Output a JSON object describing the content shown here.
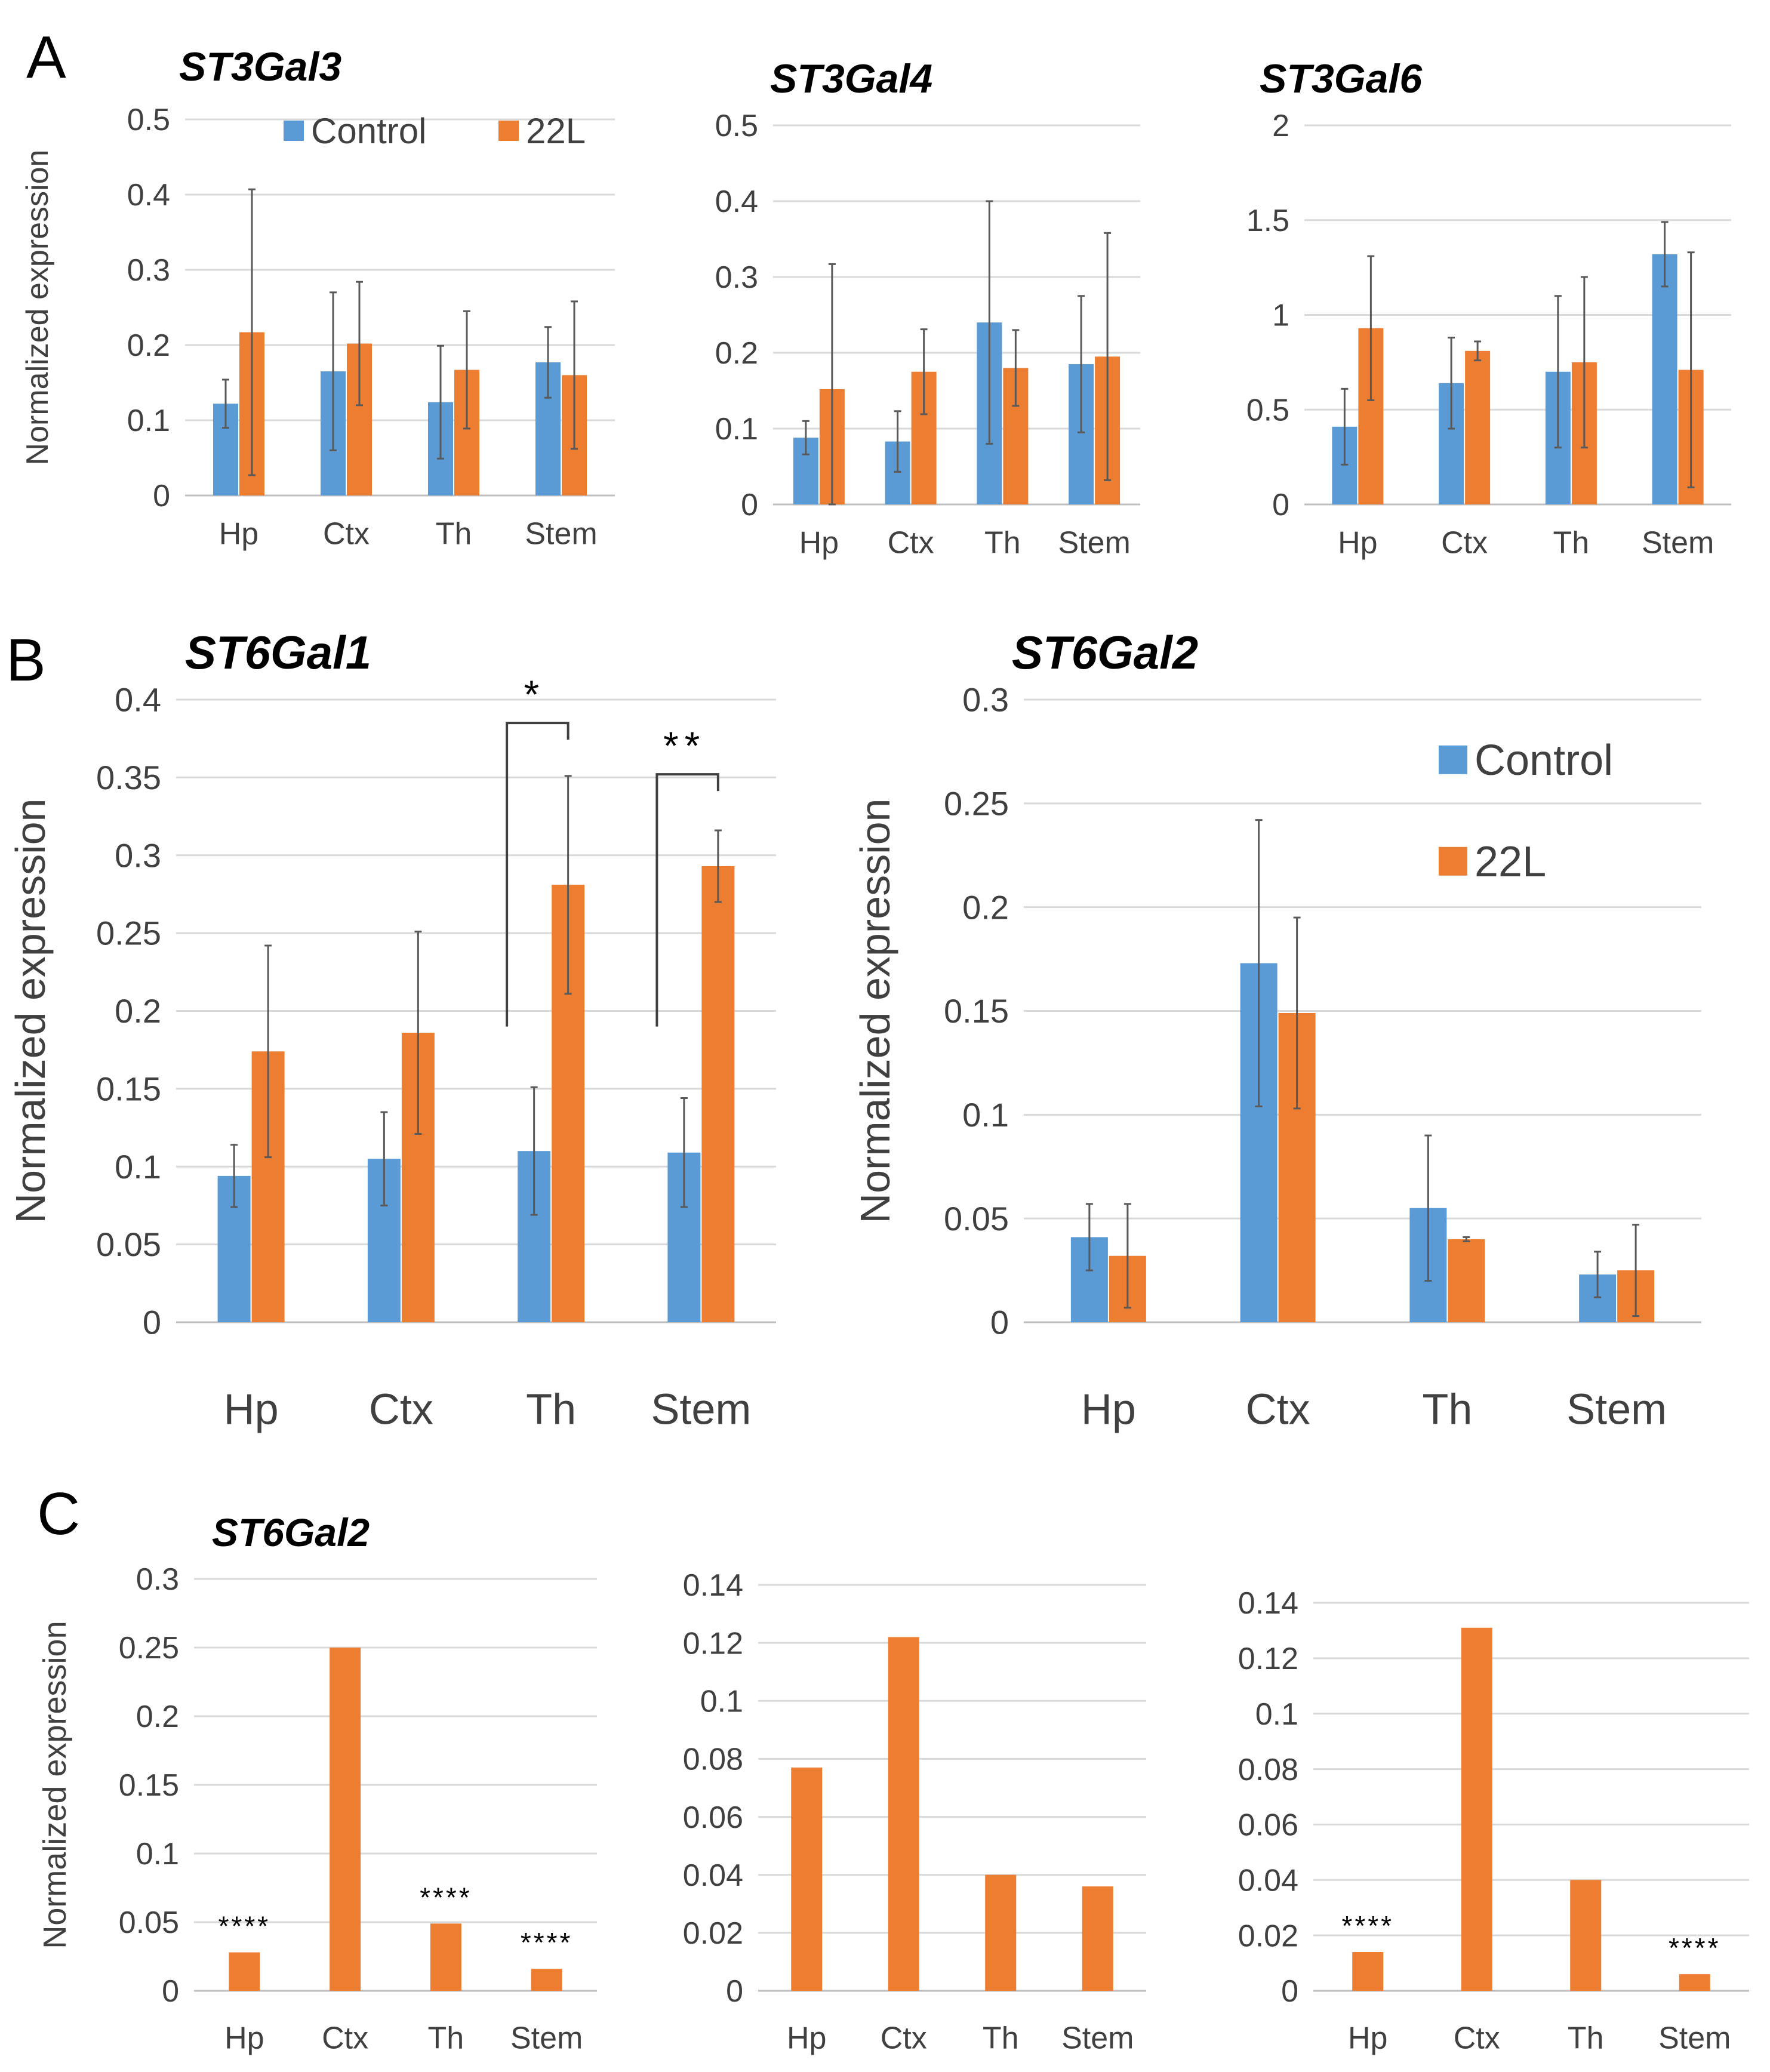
{
  "figure": {
    "panel_labels": [
      "A",
      "B",
      "C"
    ],
    "colors": {
      "control": "#5B9BD5",
      "treated": "#ED7D31",
      "grid": "#D9D9D9",
      "axis": "#BFBFBF",
      "text": "#404040",
      "errorbar": "#595959"
    }
  },
  "chart_data": [
    {
      "id": "a1",
      "panel": "A",
      "type": "bar",
      "title": "ST3Gal3",
      "categories": [
        "Hp",
        "Ctx",
        "Th",
        "Stem"
      ],
      "ylabel": "Normalized expression",
      "ylim": [
        0,
        0.5
      ],
      "yticks": [
        "0",
        "0.1",
        "0.2",
        "0.3",
        "0.4",
        "0.5"
      ],
      "ytick_values": [
        0,
        0.1,
        0.2,
        0.3,
        0.4,
        0.5
      ],
      "legend": [
        "Control",
        "22L"
      ],
      "legend_position": "top",
      "series": [
        {
          "name": "Control",
          "values": [
            0.122,
            0.165,
            0.124,
            0.177
          ],
          "errors": [
            0.032,
            0.105,
            0.075,
            0.047
          ]
        },
        {
          "name": "22L",
          "values": [
            0.217,
            0.202,
            0.167,
            0.16
          ],
          "errors": [
            0.19,
            0.082,
            0.078,
            0.098
          ]
        }
      ]
    },
    {
      "id": "a2",
      "panel": "A",
      "type": "bar",
      "title": "ST3Gal4",
      "categories": [
        "Hp",
        "Ctx",
        "Th",
        "Stem"
      ],
      "ylim": [
        0,
        0.5
      ],
      "yticks": [
        "0",
        "0.1",
        "0.2",
        "0.3",
        "0.4",
        "0.5"
      ],
      "ytick_values": [
        0,
        0.1,
        0.2,
        0.3,
        0.4,
        0.5
      ],
      "series": [
        {
          "name": "Control",
          "values": [
            0.088,
            0.083,
            0.24,
            0.185
          ],
          "errors": [
            0.022,
            0.04,
            0.16,
            0.09
          ]
        },
        {
          "name": "22L",
          "values": [
            0.152,
            0.175,
            0.18,
            0.195
          ],
          "errors": [
            0.165,
            0.056,
            0.05,
            0.163
          ]
        }
      ]
    },
    {
      "id": "a3",
      "panel": "A",
      "type": "bar",
      "title": "ST3Gal6",
      "categories": [
        "Hp",
        "Ctx",
        "Th",
        "Stem"
      ],
      "ylim": [
        0,
        2
      ],
      "yticks": [
        "0",
        "0.5",
        "1",
        "1.5",
        "2"
      ],
      "ytick_values": [
        0,
        0.5,
        1,
        1.5,
        2
      ],
      "series": [
        {
          "name": "Control",
          "values": [
            0.41,
            0.64,
            0.7,
            1.32
          ],
          "errors": [
            0.2,
            0.24,
            0.4,
            0.17
          ]
        },
        {
          "name": "22L",
          "values": [
            0.93,
            0.81,
            0.75,
            0.71
          ],
          "errors": [
            0.38,
            0.05,
            0.45,
            0.62
          ]
        }
      ]
    },
    {
      "id": "b1",
      "panel": "B",
      "type": "bar",
      "title": "ST6Gal1",
      "categories": [
        "Hp",
        "Ctx",
        "Th",
        "Stem"
      ],
      "ylabel": "Normalized expression",
      "ylim": [
        0,
        0.4
      ],
      "yticks": [
        "0",
        "0.05",
        "0.1",
        "0.15",
        "0.2",
        "0.25",
        "0.3",
        "0.35",
        "0.4"
      ],
      "ytick_values": [
        0,
        0.05,
        0.1,
        0.15,
        0.2,
        0.25,
        0.3,
        0.35,
        0.4
      ],
      "significance": [
        {
          "category": "Th",
          "label": "*",
          "base": 0.19,
          "top": 0.385
        },
        {
          "category": "Stem",
          "label": "**",
          "base": 0.19,
          "top": 0.352
        }
      ],
      "series": [
        {
          "name": "Control",
          "values": [
            0.094,
            0.105,
            0.11,
            0.109
          ],
          "errors": [
            0.02,
            0.03,
            0.041,
            0.035
          ]
        },
        {
          "name": "22L",
          "values": [
            0.174,
            0.186,
            0.281,
            0.293
          ],
          "errors": [
            0.068,
            0.065,
            0.07,
            0.023
          ]
        }
      ]
    },
    {
      "id": "b2",
      "panel": "B",
      "type": "bar",
      "title": "ST6Gal2",
      "categories": [
        "Hp",
        "Ctx",
        "Th",
        "Stem"
      ],
      "ylabel": "Normalized expression",
      "ylim": [
        0,
        0.3
      ],
      "yticks": [
        "0",
        "0.05",
        "0.1",
        "0.15",
        "0.2",
        "0.25",
        "0.3"
      ],
      "ytick_values": [
        0,
        0.05,
        0.1,
        0.15,
        0.2,
        0.25,
        0.3
      ],
      "legend": [
        "Control",
        "22L"
      ],
      "legend_position": "top-right",
      "series": [
        {
          "name": "Control",
          "values": [
            0.041,
            0.173,
            0.055,
            0.023
          ],
          "errors": [
            0.016,
            0.069,
            0.035,
            0.011
          ]
        },
        {
          "name": "22L",
          "values": [
            0.032,
            0.149,
            0.04,
            0.025
          ],
          "errors": [
            0.025,
            0.046,
            0.001,
            0.022
          ]
        }
      ]
    },
    {
      "id": "c1",
      "panel": "C",
      "type": "bar",
      "title": "ST6Gal2",
      "categories": [
        "Hp",
        "Ctx",
        "Th",
        "Stem"
      ],
      "ylabel": "Normalized expression",
      "ylim": [
        0,
        0.3
      ],
      "yticks": [
        "0",
        "0.05",
        "0.1",
        "0.15",
        "0.2",
        "0.25",
        "0.3"
      ],
      "ytick_values": [
        0,
        0.05,
        0.1,
        0.15,
        0.2,
        0.25,
        0.3
      ],
      "annotations": [
        "****",
        "",
        "****",
        "****"
      ],
      "series": [
        {
          "name": "22L",
          "values": [
            0.028,
            0.25,
            0.049,
            0.016
          ]
        }
      ]
    },
    {
      "id": "c2",
      "panel": "C",
      "type": "bar",
      "title": "",
      "categories": [
        "Hp",
        "Ctx",
        "Th",
        "Stem"
      ],
      "ylim": [
        0,
        0.14
      ],
      "yticks": [
        "0",
        "0.02",
        "0.04",
        "0.06",
        "0.08",
        "0.1",
        "0.12",
        "0.14"
      ],
      "ytick_values": [
        0,
        0.02,
        0.04,
        0.06,
        0.08,
        0.1,
        0.12,
        0.14
      ],
      "series": [
        {
          "name": "22L",
          "values": [
            0.077,
            0.122,
            0.04,
            0.036
          ]
        }
      ]
    },
    {
      "id": "c3",
      "panel": "C",
      "type": "bar",
      "title": "",
      "categories": [
        "Hp",
        "Ctx",
        "Th",
        "Stem"
      ],
      "ylim": [
        0,
        0.14
      ],
      "yticks": [
        "0",
        "0.02",
        "0.04",
        "0.06",
        "0.08",
        "0.1",
        "0.12",
        "0.14"
      ],
      "ytick_values": [
        0,
        0.02,
        0.04,
        0.06,
        0.08,
        0.1,
        0.12,
        0.14
      ],
      "annotations": [
        "****",
        "",
        "",
        "****"
      ],
      "series": [
        {
          "name": "22L",
          "values": [
            0.014,
            0.131,
            0.04,
            0.006
          ]
        }
      ]
    }
  ]
}
